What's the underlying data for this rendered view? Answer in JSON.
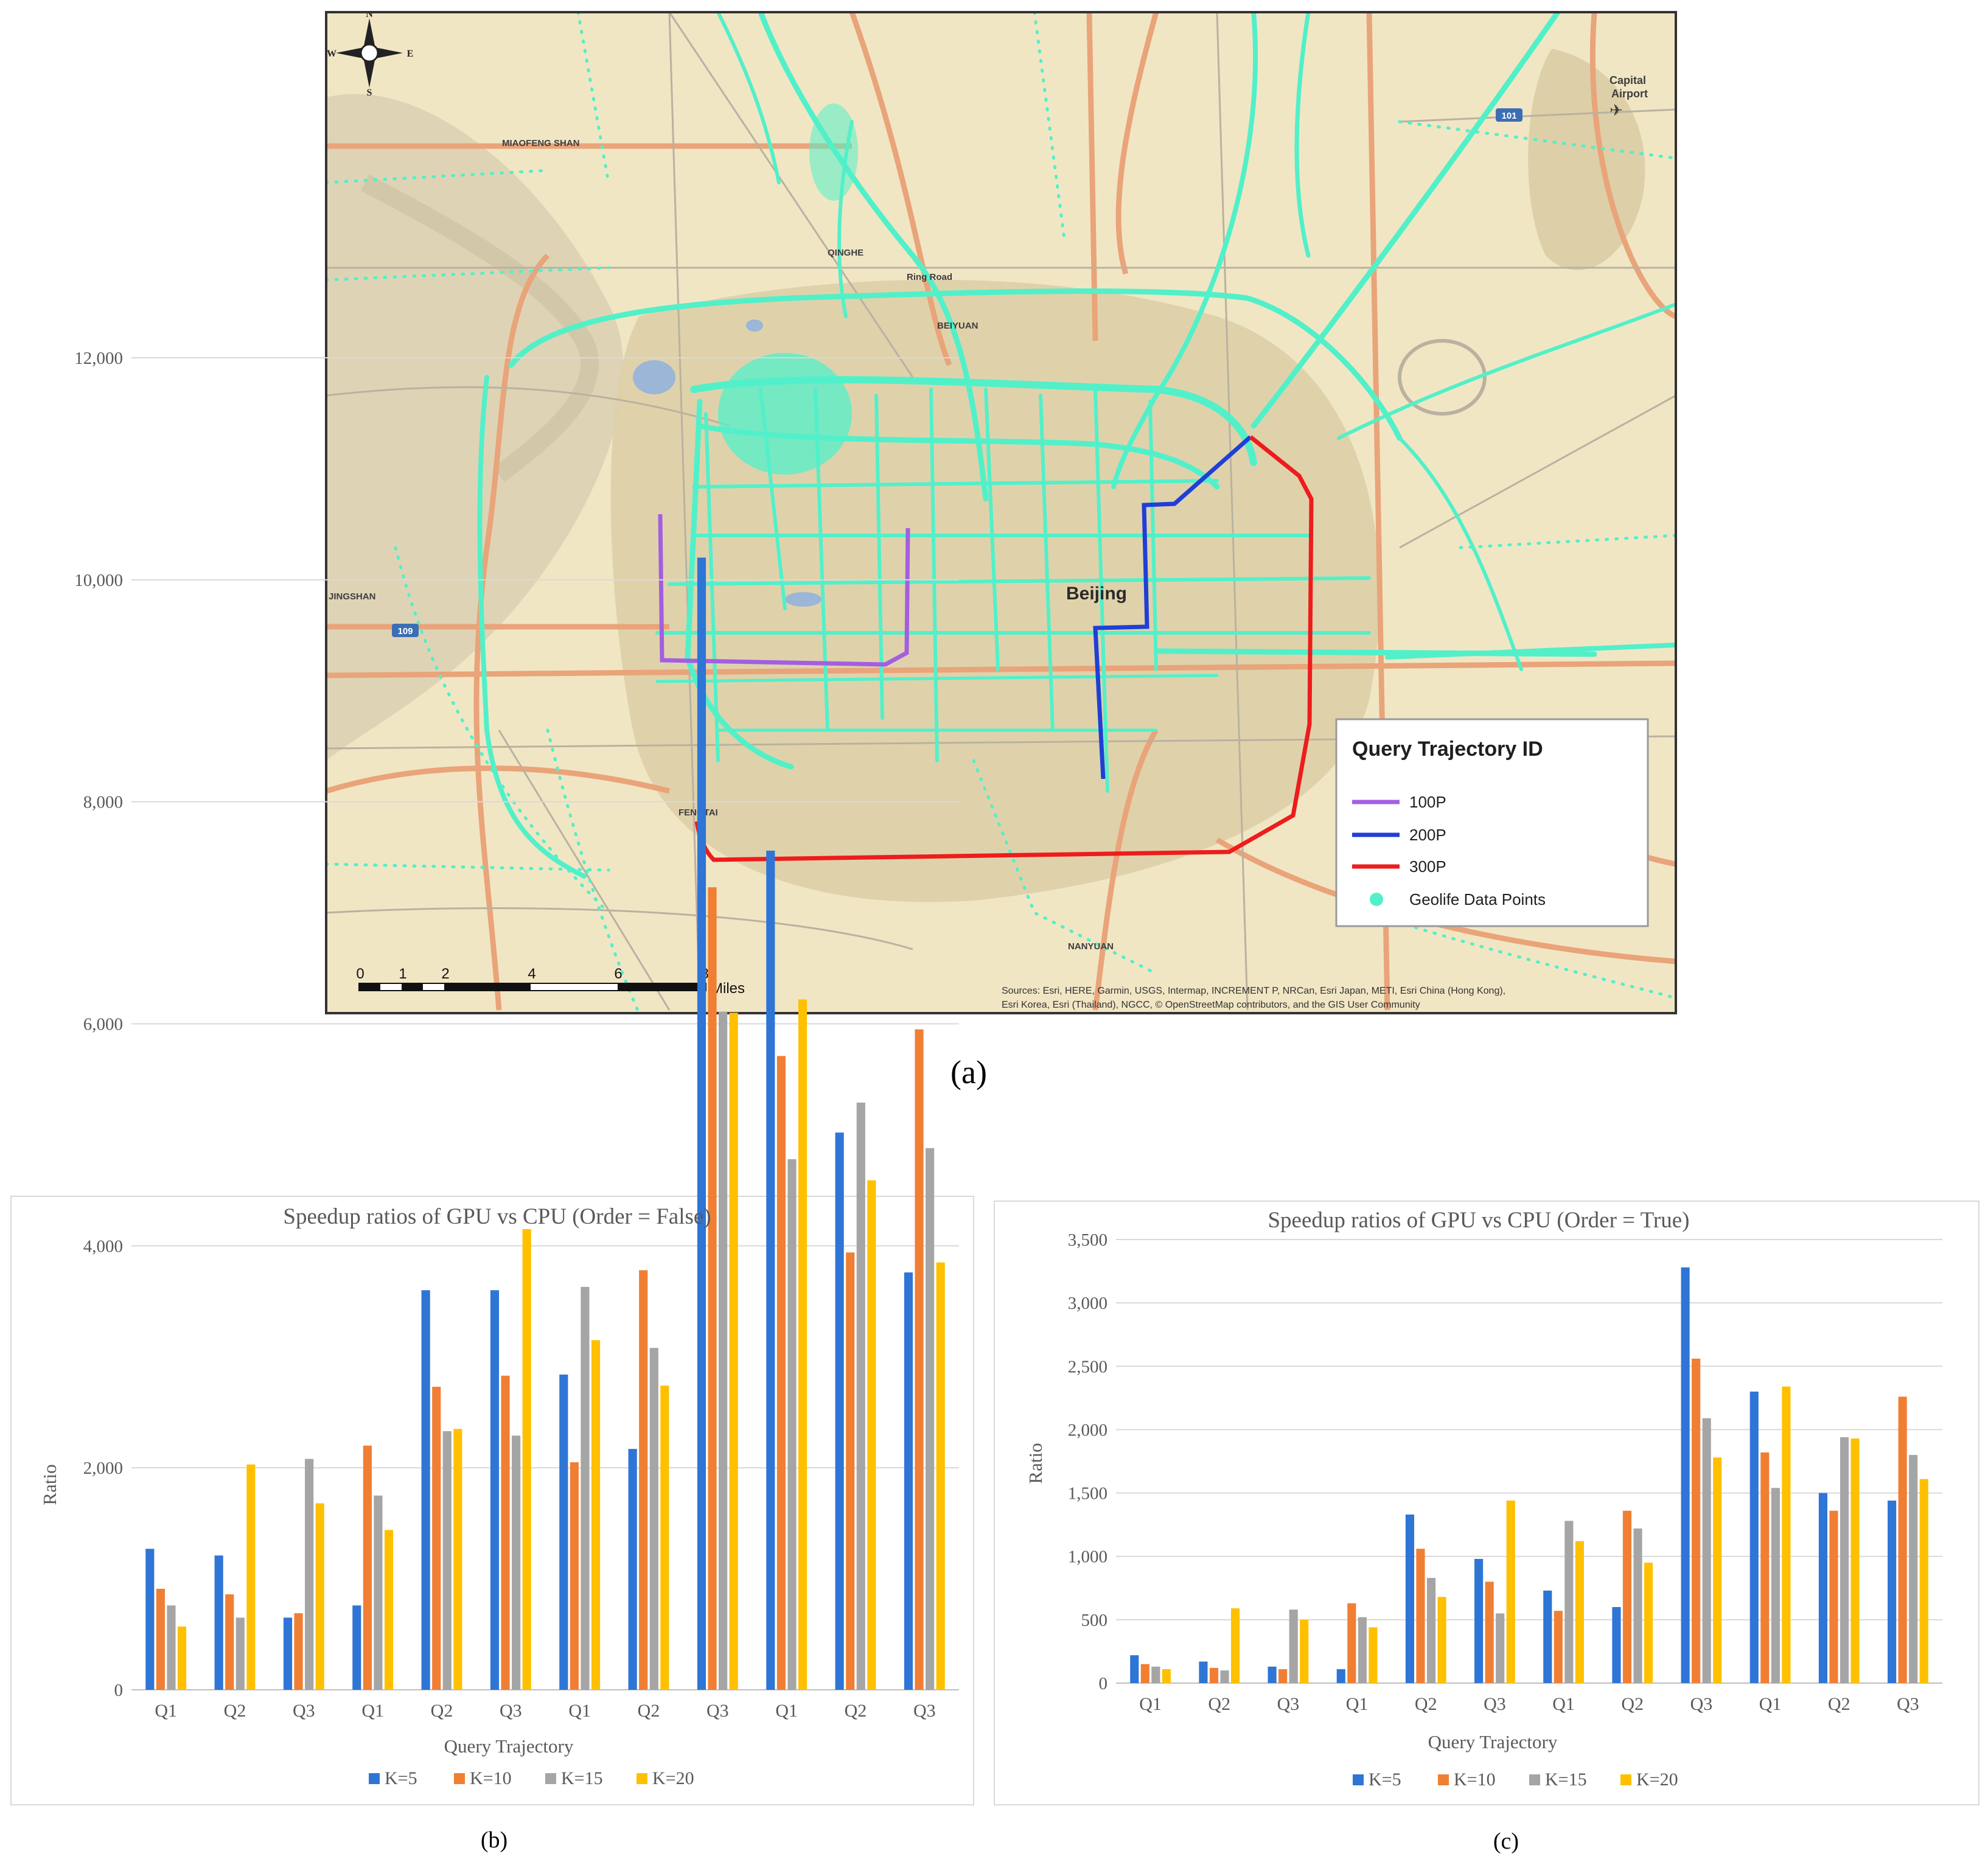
{
  "panels": {
    "a": {
      "caption": "(a)"
    },
    "b": {
      "caption": "(b)"
    },
    "c": {
      "caption": "(c)"
    }
  },
  "map": {
    "compass": {
      "n": "N",
      "s": "S",
      "e": "E",
      "w": "W"
    },
    "city_label": "Beijing",
    "place_labels": [
      {
        "id": "miaofeng",
        "text": "MIAOFENG SHAN"
      },
      {
        "id": "qinghe",
        "text": "QINGHE"
      },
      {
        "id": "ringroad",
        "text": "Ring Road"
      },
      {
        "id": "beiyuan",
        "text": "BEIYUAN"
      },
      {
        "id": "jingshan",
        "text": "JINGSHAN"
      },
      {
        "id": "fengtai",
        "text": "FENGTAI"
      },
      {
        "id": "nanyuan",
        "text": "NANYUAN"
      },
      {
        "id": "airport1",
        "text": "Capital"
      },
      {
        "id": "airport2",
        "text": "Airport"
      }
    ],
    "shields": [
      {
        "id": "s101",
        "text": "101"
      },
      {
        "id": "s109",
        "text": "109"
      }
    ],
    "legend": {
      "title": "Query Trajectory ID",
      "items": [
        {
          "label": "100P",
          "color": "#a45ee0"
        },
        {
          "label": "200P",
          "color": "#1f3fd6"
        },
        {
          "label": "300P",
          "color": "#ee1c1c"
        },
        {
          "label": "Geolife Data Points",
          "color": "#4ff0c8"
        }
      ]
    },
    "scalebar": {
      "ticks": [
        "0",
        "1",
        "2",
        "4",
        "6",
        "8"
      ],
      "unit": "Miles"
    },
    "attribution_line1": "Sources: Esri, HERE, Garmin, USGS, Intermap, INCREMENT P, NRCan, Esri Japan, METI, Esri China (Hong Kong),",
    "attribution_line2": "Esri Korea, Esri (Thailand), NGCC, © OpenStreetMap contributors, and the GIS User Community",
    "colors": {
      "land": "#f1e6c4",
      "urban": "#dccea6",
      "major_road": "#e9a47a",
      "points": "#52f0c9"
    }
  },
  "chart_data": [
    {
      "type": "bar",
      "title": "Speedup ratios of GPU vs CPU (Order = False)",
      "xlabel": "Query Trajectory",
      "ylabel": "Ratio",
      "ylim": [
        0,
        12000
      ],
      "yticks": [
        "0",
        "2,000",
        "4,000",
        "6,000",
        "8,000",
        "10,000",
        "12,000"
      ],
      "categories": [
        "Q1",
        "Q2",
        "Q3",
        "Q1",
        "Q2",
        "Q3",
        "Q1",
        "Q2",
        "Q3",
        "Q1",
        "Q2",
        "Q3"
      ],
      "series": [
        {
          "name": "K=5",
          "color": "#2e75d6",
          "values": [
            1270,
            1210,
            650,
            760,
            3600,
            3600,
            2840,
            2170,
            10200,
            7560,
            5020,
            3760
          ]
        },
        {
          "name": "K=10",
          "color": "#f07f34",
          "values": [
            910,
            860,
            690,
            2200,
            2730,
            2830,
            2050,
            3780,
            7230,
            5710,
            3940,
            5950
          ]
        },
        {
          "name": "K=15",
          "color": "#a5a5a5",
          "values": [
            760,
            650,
            2080,
            1750,
            2330,
            2290,
            3630,
            3080,
            6110,
            4780,
            5290,
            4880
          ]
        },
        {
          "name": "K=20",
          "color": "#ffc000",
          "values": [
            570,
            2030,
            1680,
            1440,
            2350,
            4150,
            3150,
            2740,
            6100,
            6220,
            4590,
            3850
          ]
        }
      ],
      "legend": "bottom",
      "grid": true
    },
    {
      "type": "bar",
      "title": "Speedup ratios of GPU vs CPU (Order = True)",
      "xlabel": "Query Trajectory",
      "ylabel": "Ratio",
      "ylim": [
        0,
        3500
      ],
      "yticks": [
        "0",
        "500",
        "1,000",
        "1,500",
        "2,000",
        "2,500",
        "3,000",
        "3,500"
      ],
      "categories": [
        "Q1",
        "Q2",
        "Q3",
        "Q1",
        "Q2",
        "Q3",
        "Q1",
        "Q2",
        "Q3",
        "Q1",
        "Q2",
        "Q3"
      ],
      "series": [
        {
          "name": "K=5",
          "color": "#2e75d6",
          "values": [
            220,
            170,
            130,
            110,
            1330,
            980,
            730,
            600,
            3280,
            2300,
            1500,
            1440
          ]
        },
        {
          "name": "K=10",
          "color": "#f07f34",
          "values": [
            150,
            120,
            110,
            630,
            1060,
            800,
            570,
            1360,
            2560,
            1820,
            1360,
            2260
          ]
        },
        {
          "name": "K=15",
          "color": "#a5a5a5",
          "values": [
            130,
            100,
            580,
            520,
            830,
            550,
            1280,
            1220,
            2090,
            1540,
            1940,
            1800
          ]
        },
        {
          "name": "K=20",
          "color": "#ffc000",
          "values": [
            110,
            590,
            500,
            440,
            680,
            1440,
            1120,
            950,
            1780,
            2340,
            1930,
            1610
          ]
        }
      ],
      "legend": "bottom",
      "grid": true
    }
  ]
}
